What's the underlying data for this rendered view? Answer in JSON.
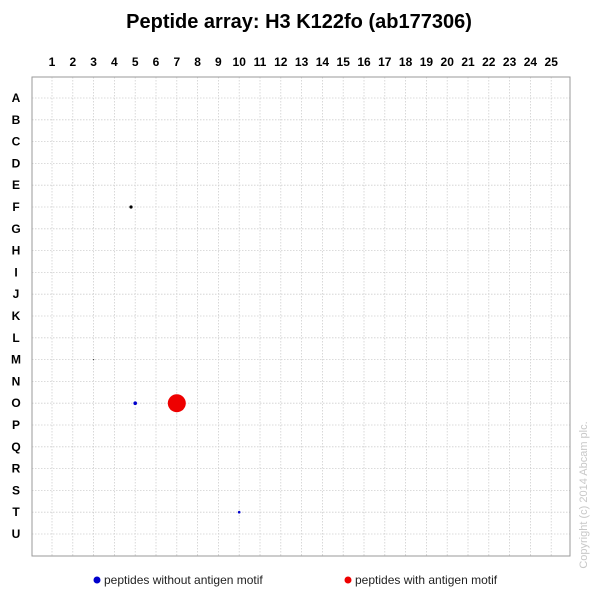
{
  "chart_data": {
    "type": "scatter",
    "title": "Peptide array: H3 K122fo (ab177306)",
    "x_categories": [
      "1",
      "2",
      "3",
      "4",
      "5",
      "6",
      "7",
      "8",
      "9",
      "10",
      "11",
      "12",
      "13",
      "14",
      "15",
      "16",
      "17",
      "18",
      "19",
      "20",
      "21",
      "22",
      "23",
      "24",
      "25"
    ],
    "y_categories": [
      "A",
      "B",
      "C",
      "D",
      "E",
      "F",
      "G",
      "H",
      "I",
      "J",
      "K",
      "L",
      "M",
      "N",
      "O",
      "P",
      "Q",
      "R",
      "S",
      "T",
      "U"
    ],
    "grid": true,
    "legend_position": "bottom",
    "series": [
      {
        "name": "peptides without antigen motif",
        "color": "#0000cc",
        "points": [
          {
            "x": 4.8,
            "y": "F",
            "size": 1.6,
            "color": "#000000"
          },
          {
            "x": 3.0,
            "y": "M",
            "size": 0.6,
            "color": "#333333"
          },
          {
            "x": 5.0,
            "y": "O",
            "size": 1.8,
            "color": "#0000cc"
          },
          {
            "x": 10.0,
            "y": "T",
            "size": 1.3,
            "color": "#0000cc"
          }
        ]
      },
      {
        "name": "peptides with antigen motif",
        "color": "#ee0000",
        "points": [
          {
            "x": 7.0,
            "y": "O",
            "size": 9.0,
            "color": "#ee0000"
          }
        ]
      }
    ],
    "copyright": "Copyright (c) 2014 Abcam plc."
  }
}
